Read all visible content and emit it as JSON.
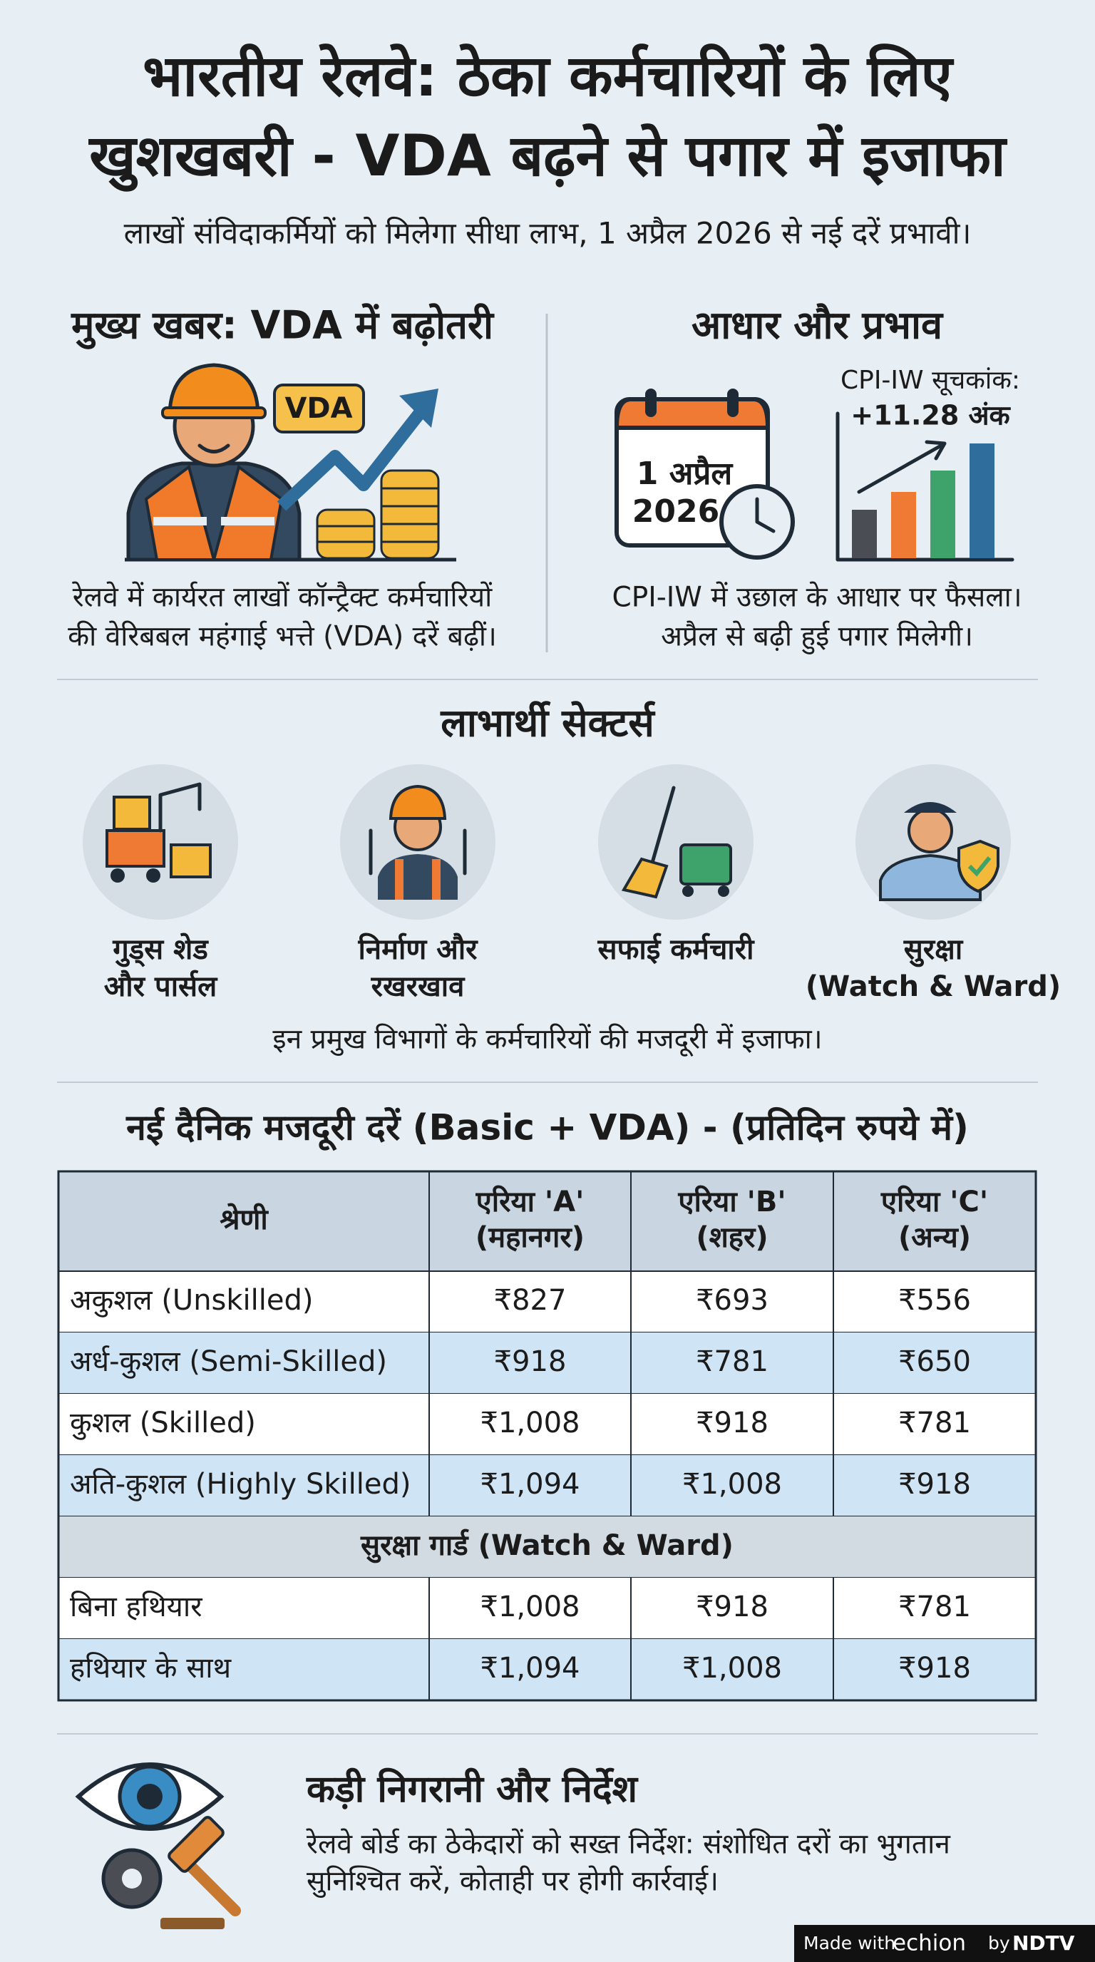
{
  "header": {
    "title_lines": [
      "भारतीय रेलवे: ठेका कर्मचारियों के लिए",
      "खुशखबरी - VDA बढ़ने से पगार में इजाफा"
    ],
    "subtitle": "लाखों संविदाकर्मियों को मिलेगा सीधा लाभ, 1 अप्रैल 2026 से नई दरें प्रभावी।"
  },
  "main_news": {
    "heading": "मुख्य खबर: VDA में बढ़ोतरी",
    "badge": "VDA",
    "text_lines": [
      "रेलवे में कार्यरत लाखों कॉन्ट्रैक्ट कर्मचारियों",
      "की वेरिबबल महंगाई भत्ते (VDA) दरें बढ़ीं।"
    ]
  },
  "basis": {
    "heading": "आधार और प्रभाव",
    "calendar_lines": [
      "1 अप्रैल",
      "2026"
    ],
    "cpi_label": "CPI-IW सूचकांक:",
    "cpi_value": "+11.28 अंक",
    "text_lines": [
      "CPI-IW में उछाल के आधार पर फैसला।",
      "अप्रैल से बढ़ी हुई पगार मिलेगी।"
    ]
  },
  "sectors": {
    "heading": "लाभार्थी सेक्टर्स",
    "items": [
      {
        "label_lines": [
          "गुड्स शेड",
          "और पार्सल"
        ]
      },
      {
        "label_lines": [
          "निर्माण और",
          "रखरखाव"
        ]
      },
      {
        "label_lines": [
          "सफाई कर्मचारी"
        ]
      },
      {
        "label_lines": [
          "सुरक्षा",
          "(Watch & Ward)"
        ]
      }
    ],
    "note": "इन प्रमुख विभागों के कर्मचारियों की मजदूरी में इजाफा।"
  },
  "table": {
    "title": "नई दैनिक मजदूरी दरें (Basic + VDA) - (प्रतिदिन रुपये में)",
    "columns": [
      [
        "श्रेणी"
      ],
      [
        "एरिया 'A'",
        "(महानगर)"
      ],
      [
        "एरिया 'B'",
        "(शहर)"
      ],
      [
        "एरिया 'C'",
        "(अन्य)"
      ]
    ],
    "rows": [
      [
        "अकुशल (Unskilled)",
        "₹827",
        "₹693",
        "₹556"
      ],
      [
        "अर्ध-कुशल (Semi-Skilled)",
        "₹918",
        "₹781",
        "₹650"
      ],
      [
        "कुशल (Skilled)",
        "₹1,008",
        "₹918",
        "₹781"
      ],
      [
        "अति-कुशल (Highly Skilled)",
        "₹1,094",
        "₹1,008",
        "₹918"
      ]
    ],
    "group_header": "सुरक्षा गार्ड (Watch & Ward)",
    "group_rows": [
      [
        "बिना हथियार",
        "₹1,008",
        "₹918",
        "₹781"
      ],
      [
        "हथियार के साथ",
        "₹1,094",
        "₹1,008",
        "₹918"
      ]
    ]
  },
  "footer": {
    "heading": "कड़ी निगरानी और निर्देश",
    "text_lines": [
      "रेलवे बोर्ड का ठेकेदारों को सख्त निर्देश: संशोधित दरों का भुगतान",
      "सुनिश्चित करें, कोताही पर होगी कार्रवाई।"
    ]
  },
  "credit": {
    "made_with": "Made with",
    "brand": "echion",
    "by": "by",
    "ndtv": "NDTV"
  }
}
